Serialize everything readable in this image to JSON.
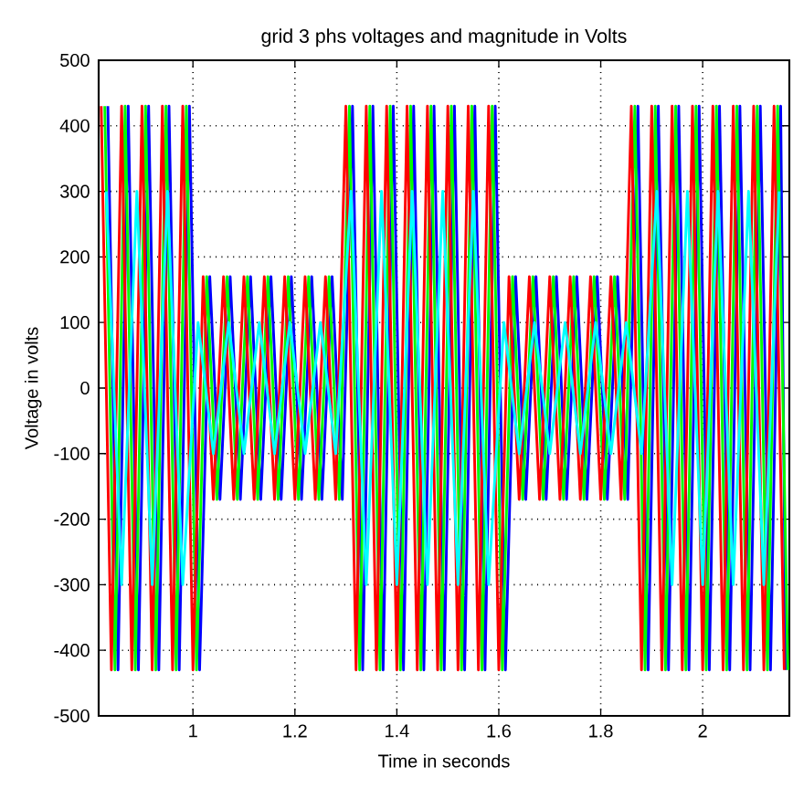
{
  "chart_data": {
    "type": "line",
    "title": "grid 3 phs voltages and magnitude in Volts",
    "xlabel": "Time in seconds",
    "ylabel": "Voltage in volts",
    "xlim": [
      0.815,
      2.17
    ],
    "ylim": [
      -500,
      500
    ],
    "xticks": [
      1,
      1.2,
      1.4,
      1.6,
      1.8,
      2
    ],
    "yticks": [
      -500,
      -400,
      -300,
      -200,
      -100,
      0,
      100,
      200,
      300,
      400,
      500
    ],
    "grid": true,
    "line_style": "solid",
    "series": [
      {
        "color": "#0000ff",
        "x": [
          0.833,
          0.853,
          0.873,
          0.893,
          0.913,
          0.933,
          0.953,
          0.973,
          0.993,
          1.013,
          1.033,
          1.053,
          1.073,
          1.093,
          1.113,
          1.133,
          1.153,
          1.173,
          1.193,
          1.213,
          1.233,
          1.253,
          1.273,
          1.293,
          1.313,
          1.333,
          1.353,
          1.373,
          1.393,
          1.413,
          1.433,
          1.453,
          1.473,
          1.493,
          1.513,
          1.533,
          1.553,
          1.573,
          1.593,
          1.613,
          1.633,
          1.653,
          1.673,
          1.693,
          1.713,
          1.733,
          1.753,
          1.773,
          1.793,
          1.813,
          1.833,
          1.853,
          1.873,
          1.893,
          1.913,
          1.933,
          1.953,
          1.973,
          1.993,
          2.013,
          2.033,
          2.053,
          2.073,
          2.093,
          2.113,
          2.133,
          2.153,
          2.163
        ],
        "values": [
          430,
          -430,
          430,
          -430,
          430,
          -430,
          430,
          -430,
          430,
          -430,
          170,
          -170,
          170,
          -170,
          170,
          -170,
          170,
          -170,
          170,
          -170,
          170,
          -170,
          170,
          -170,
          430,
          -430,
          430,
          -430,
          430,
          -430,
          430,
          -430,
          430,
          -430,
          430,
          -430,
          430,
          -430,
          430,
          -430,
          170,
          -170,
          170,
          -170,
          170,
          -170,
          170,
          -170,
          170,
          -170,
          170,
          -170,
          430,
          -430,
          430,
          -430,
          430,
          -430,
          430,
          -430,
          430,
          -430,
          430,
          -430,
          430,
          -430,
          430,
          -430
        ]
      },
      {
        "color": "#00ff00",
        "x": [
          0.827,
          0.847,
          0.867,
          0.887,
          0.907,
          0.927,
          0.947,
          0.967,
          0.987,
          1.007,
          1.027,
          1.047,
          1.067,
          1.087,
          1.107,
          1.127,
          1.147,
          1.167,
          1.187,
          1.207,
          1.227,
          1.247,
          1.267,
          1.287,
          1.307,
          1.327,
          1.347,
          1.367,
          1.387,
          1.407,
          1.427,
          1.447,
          1.467,
          1.487,
          1.507,
          1.527,
          1.547,
          1.567,
          1.587,
          1.607,
          1.627,
          1.647,
          1.667,
          1.687,
          1.707,
          1.727,
          1.747,
          1.767,
          1.787,
          1.807,
          1.827,
          1.847,
          1.867,
          1.887,
          1.907,
          1.927,
          1.947,
          1.967,
          1.987,
          2.007,
          2.027,
          2.047,
          2.067,
          2.087,
          2.107,
          2.127,
          2.147,
          2.167
        ],
        "values": [
          430,
          -430,
          430,
          -430,
          430,
          -430,
          430,
          -430,
          430,
          -430,
          170,
          -170,
          170,
          -170,
          170,
          -170,
          170,
          -170,
          170,
          -170,
          170,
          -170,
          170,
          -170,
          430,
          -430,
          430,
          -430,
          430,
          -430,
          430,
          -430,
          430,
          -430,
          430,
          -430,
          430,
          -430,
          430,
          -430,
          170,
          -170,
          170,
          -170,
          170,
          -170,
          170,
          -170,
          170,
          -170,
          170,
          -170,
          430,
          -430,
          430,
          -430,
          430,
          -430,
          430,
          -430,
          430,
          -430,
          430,
          -430,
          430,
          -430,
          430,
          -430
        ]
      },
      {
        "color": "#ff0000",
        "x": [
          0.82,
          0.84,
          0.86,
          0.88,
          0.9,
          0.92,
          0.94,
          0.96,
          0.98,
          1.0,
          1.02,
          1.04,
          1.06,
          1.08,
          1.1,
          1.12,
          1.14,
          1.16,
          1.18,
          1.2,
          1.22,
          1.24,
          1.26,
          1.28,
          1.3,
          1.32,
          1.34,
          1.36,
          1.38,
          1.4,
          1.42,
          1.44,
          1.46,
          1.48,
          1.5,
          1.52,
          1.54,
          1.56,
          1.58,
          1.6,
          1.62,
          1.64,
          1.66,
          1.68,
          1.7,
          1.72,
          1.74,
          1.76,
          1.78,
          1.8,
          1.82,
          1.84,
          1.86,
          1.88,
          1.9,
          1.92,
          1.94,
          1.96,
          1.98,
          2.0,
          2.02,
          2.04,
          2.06,
          2.08,
          2.1,
          2.12,
          2.14,
          2.16
        ],
        "values": [
          430,
          -430,
          430,
          -430,
          430,
          -430,
          430,
          -430,
          430,
          -430,
          170,
          -170,
          170,
          -170,
          170,
          -170,
          170,
          -170,
          170,
          -170,
          170,
          -170,
          170,
          -170,
          430,
          -430,
          430,
          -430,
          430,
          -430,
          430,
          -430,
          430,
          -430,
          430,
          -430,
          430,
          -430,
          430,
          -430,
          170,
          -170,
          170,
          -170,
          170,
          -170,
          170,
          -170,
          170,
          -170,
          170,
          -170,
          430,
          -430,
          430,
          -430,
          430,
          -430,
          430,
          -430,
          430,
          -430,
          430,
          -430,
          430,
          -430,
          430,
          -430
        ]
      },
      {
        "color": "#00ffff",
        "x": [
          0.83,
          0.86,
          0.89,
          0.92,
          0.95,
          0.98,
          1.01,
          1.04,
          1.07,
          1.1,
          1.13,
          1.16,
          1.19,
          1.22,
          1.25,
          1.28,
          1.31,
          1.34,
          1.37,
          1.4,
          1.43,
          1.46,
          1.49,
          1.52,
          1.55,
          1.58,
          1.61,
          1.64,
          1.67,
          1.7,
          1.73,
          1.76,
          1.79,
          1.82,
          1.85,
          1.88,
          1.91,
          1.94,
          1.97,
          2.0,
          2.03,
          2.06,
          2.09,
          2.12,
          2.15
        ],
        "values": [
          300,
          -300,
          300,
          -300,
          300,
          -300,
          100,
          -100,
          100,
          -100,
          100,
          -100,
          100,
          -100,
          100,
          -100,
          300,
          -300,
          300,
          -300,
          300,
          -300,
          300,
          -300,
          300,
          -300,
          100,
          -100,
          100,
          -100,
          100,
          -100,
          100,
          -100,
          100,
          -100,
          300,
          -300,
          300,
          -300,
          300,
          -300,
          300,
          -300,
          300
        ]
      }
    ]
  }
}
